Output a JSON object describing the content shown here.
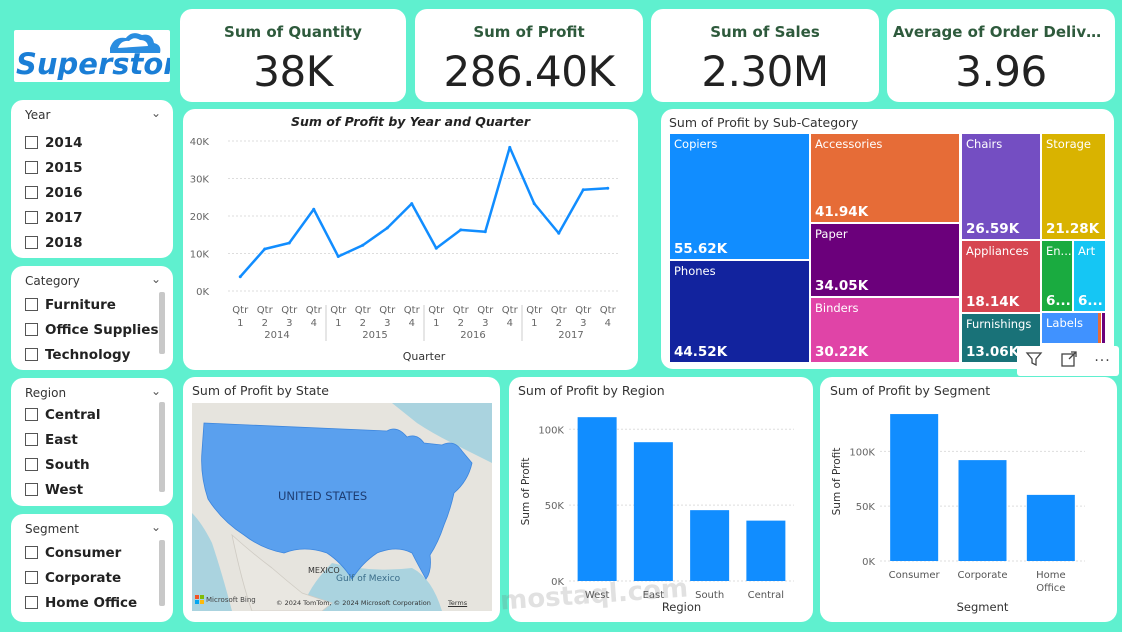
{
  "logo": {
    "text": "Superstore"
  },
  "kpis": [
    {
      "title": "Sum of Quantity",
      "value": "38K"
    },
    {
      "title": "Sum of Profit",
      "value": "286.40K"
    },
    {
      "title": "Sum of Sales",
      "value": "2.30M"
    },
    {
      "title": "Average of Order Deliver...",
      "value": "3.96"
    }
  ],
  "slicers": {
    "year": {
      "title": "Year",
      "items": [
        "2014",
        "2015",
        "2016",
        "2017",
        "2018"
      ]
    },
    "category": {
      "title": "Category",
      "items": [
        "Furniture",
        "Office Supplies",
        "Technology"
      ]
    },
    "region": {
      "title": "Region",
      "items": [
        "Central",
        "East",
        "South",
        "West"
      ]
    },
    "segment": {
      "title": "Segment",
      "items": [
        "Consumer",
        "Corporate",
        "Home Office"
      ]
    }
  },
  "line_chart": {
    "title": "Sum of Profit by Year and Quarter",
    "xlabel": "Quarter",
    "y_ticks": [
      "40K",
      "30K",
      "20K",
      "10K",
      "0K"
    ],
    "qtr_label": "Qtr",
    "quarters": [
      "1",
      "2",
      "3",
      "4"
    ],
    "years": [
      "2014",
      "2015",
      "2016",
      "2017"
    ]
  },
  "treemap": {
    "title": "Sum of Profit by Sub-Category",
    "tiles": [
      {
        "label": "Copiers",
        "value": "55.62K",
        "color": "#118DFF"
      },
      {
        "label": "Phones",
        "value": "44.52K",
        "color": "#12239E"
      },
      {
        "label": "Accessories",
        "value": "41.94K",
        "color": "#E66C37"
      },
      {
        "label": "Paper",
        "value": "34.05K",
        "color": "#6B007B"
      },
      {
        "label": "Binders",
        "value": "30.22K",
        "color": "#E044A7"
      },
      {
        "label": "Chairs",
        "value": "26.59K",
        "color": "#744EC2"
      },
      {
        "label": "Storage",
        "value": "21.28K",
        "color": "#D9B300"
      },
      {
        "label": "Appliances",
        "value": "18.14K",
        "color": "#D64550"
      },
      {
        "label": "Furnishings",
        "value": "13.06K",
        "color": "#197278"
      },
      {
        "label": "En...",
        "value": "6...",
        "color": "#1AAB40"
      },
      {
        "label": "Art",
        "value": "6...",
        "color": "#15C6F4"
      },
      {
        "label": "Labels",
        "value": "",
        "color": "#4092FF"
      }
    ]
  },
  "map": {
    "title": "Sum of Profit by State",
    "country_label": "UNITED STATES",
    "mexico_label": "MEXICO",
    "gulf_label": "Gulf of Mexico",
    "attribution": "© 2024 TomTom, © 2024 Microsoft Corporation",
    "terms": "Terms",
    "bing": "Microsoft Bing"
  },
  "watermark": "mostaql.com",
  "chart_data": [
    {
      "type": "line",
      "title": "Sum of Profit by Year and Quarter",
      "xlabel": "Quarter",
      "ylabel": "",
      "x": [
        "2014 Qtr 1",
        "2014 Qtr 2",
        "2014 Qtr 3",
        "2014 Qtr 4",
        "2015 Qtr 1",
        "2015 Qtr 2",
        "2015 Qtr 3",
        "2015 Qtr 4",
        "2016 Qtr 1",
        "2016 Qtr 2",
        "2016 Qtr 3",
        "2016 Qtr 4",
        "2017 Qtr 1",
        "2017 Qtr 2",
        "2017 Qtr 3",
        "2017 Qtr 4"
      ],
      "values": [
        3800,
        11200,
        12800,
        21800,
        9200,
        12200,
        16800,
        23300,
        11400,
        16300,
        15800,
        38300,
        23300,
        15400,
        27000,
        27400
      ],
      "ylim": [
        0,
        42000
      ],
      "grid": true
    },
    {
      "type": "bar",
      "title": "Sum of Profit by Region",
      "xlabel": "Region",
      "ylabel": "Sum of Profit",
      "categories": [
        "West",
        "East",
        "South",
        "Central"
      ],
      "values": [
        108000,
        91500,
        46700,
        39800
      ],
      "y_ticks": [
        "100K",
        "50K",
        "0K"
      ],
      "ylim": [
        0,
        118000
      ],
      "color": "#118DFF"
    },
    {
      "type": "bar",
      "title": "Sum of Profit by Segment",
      "xlabel": "Segment",
      "ylabel": "Sum of Profit",
      "categories": [
        "Consumer",
        "Corporate",
        "Home Office"
      ],
      "values": [
        134000,
        92000,
        60300
      ],
      "y_ticks": [
        "100K",
        "50K",
        "0K"
      ],
      "ylim": [
        0,
        145000
      ],
      "color": "#118DFF"
    }
  ]
}
